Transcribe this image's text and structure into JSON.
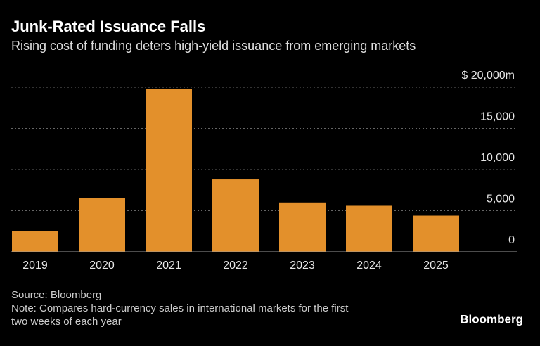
{
  "chart_data": {
    "type": "bar",
    "title": "Junk-Rated Issuance Falls",
    "subtitle": "Rising cost of funding deters high-yield issuance from emerging markets",
    "categories": [
      "2019",
      "2020",
      "2021",
      "2022",
      "2023",
      "2024",
      "2025"
    ],
    "values": [
      2500,
      6500,
      19800,
      8800,
      6000,
      5600,
      4400
    ],
    "color": "#e3902b",
    "ylim": [
      0,
      20000
    ],
    "yticks": [
      0,
      {
        "value": 5000,
        "label": "5,000"
      },
      {
        "value": 10000,
        "label": "10,000"
      },
      {
        "value": 15000,
        "label": "15,000"
      },
      {
        "value": 20000,
        "label": "$ 20,000m"
      }
    ],
    "grid": true,
    "source": "Source: Bloomberg",
    "note": [
      "Note: Compares hard-currency sales in international markets for the first",
      "two weeks of each year"
    ],
    "brand": "Bloomberg"
  }
}
